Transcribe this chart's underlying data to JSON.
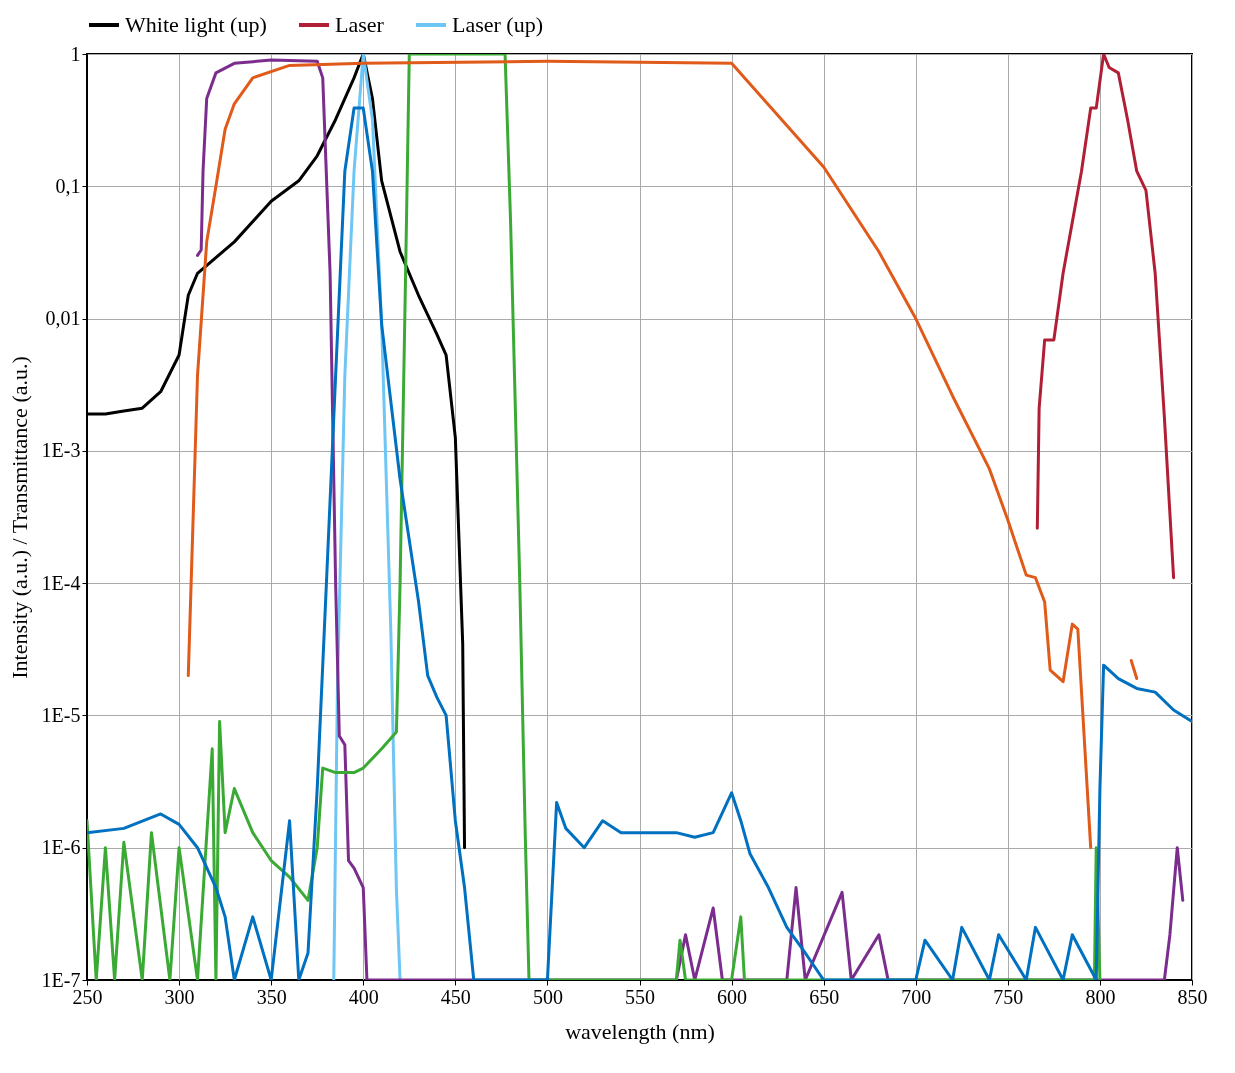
{
  "chart_data": {
    "type": "line",
    "xlabel": "wavelength (nm)",
    "ylabel": "Intensity (a.u.) / Transmittance (a.u.)",
    "log": "y",
    "grid": true,
    "legend": "top",
    "line_style": "solid",
    "marker": "none",
    "xlim": [
      250,
      850
    ],
    "xticks": [
      250,
      300,
      350,
      400,
      450,
      500,
      550,
      600,
      650,
      700,
      750,
      800,
      850
    ],
    "ylim": [
      1e-07,
      1
    ],
    "yticks": [
      {
        "value": 1e-07,
        "label": "1E-7"
      },
      {
        "value": 1e-06,
        "label": "1E-6"
      },
      {
        "value": 1e-05,
        "label": "1E-5"
      },
      {
        "value": 0.0001,
        "label": "1E-4"
      },
      {
        "value": 0.001,
        "label": "1E-3"
      },
      {
        "value": 0.01,
        "label": "0,01"
      },
      {
        "value": 0.1,
        "label": "0,1"
      },
      {
        "value": 1,
        "label": "1"
      }
    ],
    "series": [
      {
        "name": "White light (up)",
        "color": "#000000",
        "x": [
          250,
          260,
          270,
          280,
          290,
          300,
          305,
          310,
          330,
          350,
          365,
          375,
          385,
          395,
          400,
          405,
          410,
          420,
          430,
          440,
          445,
          450,
          452,
          454,
          455
        ],
        "values": [
          0.0019,
          0.0019,
          0.002,
          0.0021,
          0.0028,
          0.0053,
          0.015,
          0.022,
          0.038,
          0.077,
          0.11,
          0.17,
          0.32,
          0.66,
          1.0,
          0.46,
          0.11,
          0.032,
          0.015,
          0.0076,
          0.0053,
          0.00126,
          0.00021,
          3.5e-05,
          1e-06
        ]
      },
      {
        "name": "Laser",
        "color": "#b01f35",
        "x": [
          766,
          767,
          770,
          775,
          780,
          790,
          795,
          798,
          802,
          805,
          810,
          815,
          820,
          825,
          830,
          835,
          840
        ],
        "values": [
          0.00026,
          0.0021,
          0.0069,
          0.0069,
          0.022,
          0.13,
          0.39,
          0.39,
          1.0,
          0.79,
          0.72,
          0.32,
          0.13,
          0.093,
          0.022,
          0.0018,
          0.00011
        ]
      },
      {
        "name": "Laser (up)",
        "color": "#6ec6f5",
        "x": [
          384,
          386,
          390,
          395,
          400,
          405,
          410,
          415,
          418,
          420
        ],
        "values": [
          1e-07,
          1.7e-05,
          0.0037,
          0.13,
          1.0,
          0.32,
          0.009,
          4.2e-05,
          4.8e-07,
          1e-07
        ]
      },
      {
        "color": "#7b2d8e",
        "x": [
          310,
          312,
          313,
          315,
          320,
          330,
          350,
          375,
          378,
          382,
          385,
          387,
          390,
          392,
          395,
          400,
          402,
          570,
          575,
          580,
          590,
          595,
          630,
          635,
          640,
          660,
          665,
          680,
          685,
          835,
          838,
          842,
          845
        ],
        "values": [
          0.03,
          0.033,
          0.13,
          0.46,
          0.72,
          0.85,
          0.9,
          0.88,
          0.66,
          0.022,
          0.0001,
          7e-06,
          6e-06,
          8e-07,
          7e-07,
          5e-07,
          1e-07,
          1e-07,
          2.2e-07,
          1e-07,
          3.5e-07,
          1e-07,
          1e-07,
          5e-07,
          1e-07,
          4.6e-07,
          1e-07,
          2.2e-07,
          1e-07,
          1e-07,
          2.2e-07,
          1e-06,
          4e-07
        ]
      },
      {
        "color": "#3aaa35",
        "x": [
          250,
          255,
          260,
          265,
          270,
          280,
          285,
          295,
          300,
          310,
          318,
          320,
          322,
          325,
          330,
          340,
          350,
          360,
          370,
          375,
          378,
          385,
          395,
          400,
          410,
          418,
          420,
          423,
          425,
          470,
          477,
          480,
          485,
          488,
          490,
          570,
          572,
          575,
          600,
          605,
          607,
          797,
          798,
          800
        ],
        "values": [
          1.6e-06,
          1e-07,
          1e-06,
          1e-07,
          1.1e-06,
          1e-07,
          1.3e-06,
          1e-07,
          1e-06,
          1e-07,
          5.6e-06,
          1e-07,
          9e-06,
          1.3e-06,
          2.8e-06,
          1.3e-06,
          8e-07,
          6e-07,
          4e-07,
          1e-06,
          4e-06,
          3.7e-06,
          3.7e-06,
          4e-06,
          5.6e-06,
          7.5e-06,
          0.0001,
          0.022,
          1.0,
          1.0,
          1.0,
          0.054,
          0.0001,
          1.2e-06,
          1e-07,
          1e-07,
          2e-07,
          1e-07,
          1e-07,
          3e-07,
          1e-07,
          1e-07,
          1e-06,
          1e-07
        ]
      },
      {
        "color": "#0070c0",
        "x": [
          250,
          270,
          290,
          300,
          310,
          320,
          325,
          330,
          340,
          350,
          360,
          365,
          370,
          375,
          380,
          385,
          390,
          395,
          400,
          405,
          410,
          420,
          430,
          435,
          440,
          445,
          450,
          455,
          460,
          500,
          505,
          510,
          520,
          530,
          540,
          550,
          560,
          570,
          580,
          590,
          600,
          605,
          610,
          620,
          630,
          640,
          650,
          700,
          705,
          720,
          725,
          740,
          745,
          760,
          765,
          780,
          785,
          798,
          800,
          802,
          810,
          820,
          830,
          840,
          850
        ],
        "values": [
          1.3e-06,
          1.4e-06,
          1.8e-06,
          1.5e-06,
          1e-06,
          5e-07,
          3e-07,
          1e-07,
          3e-07,
          1e-07,
          1.6e-06,
          1e-07,
          1.6e-07,
          2.8e-06,
          0.0001,
          0.0037,
          0.13,
          0.39,
          0.39,
          0.13,
          0.009,
          0.00061,
          7.3e-05,
          2e-05,
          1.37e-05,
          1e-05,
          1.6e-06,
          5e-07,
          1e-07,
          1e-07,
          2.2e-06,
          1.4e-06,
          1e-06,
          1.6e-06,
          1.3e-06,
          1.3e-06,
          1.3e-06,
          1.3e-06,
          1.2e-06,
          1.3e-06,
          2.6e-06,
          1.6e-06,
          9e-07,
          5e-07,
          2.5e-07,
          1.6e-07,
          1e-07,
          1e-07,
          2e-07,
          1e-07,
          2.5e-07,
          1e-07,
          2.2e-07,
          1e-07,
          2.5e-07,
          1e-07,
          2.2e-07,
          1e-07,
          2.8e-06,
          2.4e-05,
          1.9e-05,
          1.6e-05,
          1.5e-05,
          1.1e-05,
          9e-06
        ]
      },
      {
        "color": "#e05a1a",
        "x": [
          305,
          310,
          315,
          320,
          325,
          330,
          340,
          360,
          400,
          500,
          600,
          650,
          680,
          700,
          720,
          740,
          750,
          760,
          765,
          770,
          773,
          780,
          785,
          788,
          795,
          800,
          817,
          820
        ],
        "values": [
          2e-05,
          0.0037,
          0.038,
          0.1,
          0.27,
          0.42,
          0.66,
          0.82,
          0.85,
          0.88,
          0.85,
          0.14,
          0.032,
          0.01,
          0.0026,
          0.00073,
          0.0003,
          0.000115,
          0.00011,
          7.2e-05,
          2.2e-05,
          1.8e-05,
          4.9e-05,
          4.5e-05,
          1e-06,
          null,
          2.6e-05,
          1.9e-05
        ]
      }
    ]
  }
}
